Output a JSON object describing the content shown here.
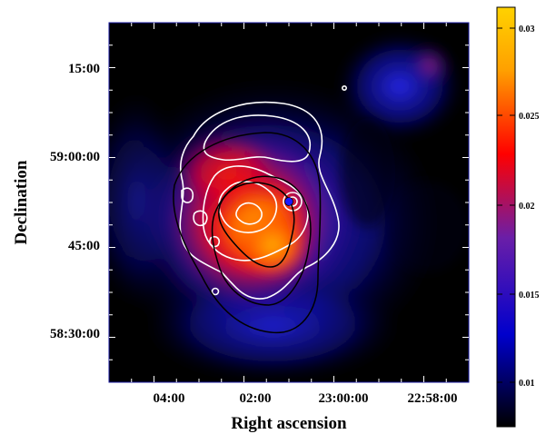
{
  "figure": {
    "xlabel": "Right ascension",
    "ylabel": "Declination",
    "x_ticks": [
      "04:00",
      "02:00",
      "23:00:00",
      "22:58:00"
    ],
    "y_ticks": [
      "15:00",
      "59:00:00",
      "45:00",
      "58:30:00"
    ]
  },
  "colorbar": {
    "ticks": [
      "0.03",
      "0.025",
      "0.02",
      "0.015",
      "0.01"
    ],
    "range": [
      0.006,
      0.031
    ],
    "colormap": [
      "#000000",
      "#0000cc",
      "#6a1ea8",
      "#ff0000",
      "#ffa000",
      "#ffd200"
    ]
  },
  "colors": {
    "contour_white": "#ffffff",
    "contour_black": "#000000",
    "frame": "#1a1aa0"
  }
}
